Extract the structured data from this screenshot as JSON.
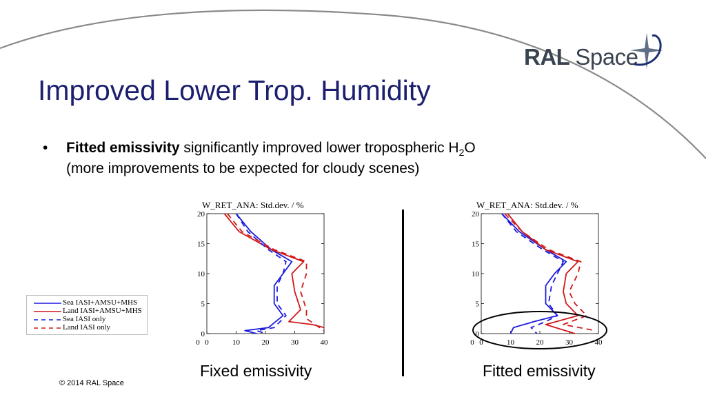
{
  "logo": {
    "word1": "RAL",
    "word2": "Space"
  },
  "slide": {
    "title": "Improved Lower Trop. Humidity",
    "bullet": {
      "marker": "•",
      "bold": "Fitted emissivity",
      "rest": " significantly improved lower tropospheric H",
      "subscript": "2",
      "after_sub": "O",
      "line2": "(more improvements to be expected for cloudy scenes)"
    },
    "footer": "© 2014 RAL Space"
  },
  "legend": {
    "entries": [
      {
        "label": "Sea IASI+AMSU+MHS",
        "color": "#1a1adf",
        "dash": false
      },
      {
        "label": "Land IASI+AMSU+MHS",
        "color": "#d01818",
        "dash": false
      },
      {
        "label": "Sea IASI only",
        "color": "#1a1adf",
        "dash": true
      },
      {
        "label": "Land IASI only",
        "color": "#d01818",
        "dash": true
      }
    ]
  },
  "colors": {
    "sea": "#1a1adf",
    "land": "#d01818",
    "title": "#1b1f6e",
    "swoosh": "#8a8a8a"
  },
  "chart_data": [
    {
      "type": "line",
      "title": "W_RET_ANA: Std.dev. / %",
      "caption": "Fixed emissivity",
      "xlim": [
        0,
        40
      ],
      "ylim": [
        0,
        20
      ],
      "xticks": [
        0,
        10,
        20,
        30,
        40
      ],
      "yticks": [
        0,
        5,
        10,
        15,
        20
      ],
      "left_extra_tick": "0",
      "highlight_ellipse": false,
      "series": [
        {
          "name": "Sea IASI+AMSU+MHS",
          "color": "#1a1adf",
          "dash": false,
          "points": [
            [
              10,
              20
            ],
            [
              15,
              17
            ],
            [
              22,
              14
            ],
            [
              29,
              12
            ],
            [
              26,
              10
            ],
            [
              23,
              8
            ],
            [
              23,
              5
            ],
            [
              26,
              3
            ],
            [
              21,
              1
            ],
            [
              13,
              0.5
            ],
            [
              17,
              0
            ]
          ]
        },
        {
          "name": "Land IASI+AMSU+MHS",
          "color": "#d01818",
          "dash": false,
          "points": [
            [
              6,
              20
            ],
            [
              11,
              17
            ],
            [
              22,
              14
            ],
            [
              33,
              12
            ],
            [
              29,
              10
            ],
            [
              30,
              7
            ],
            [
              32,
              4
            ],
            [
              28,
              2
            ],
            [
              36,
              1.5
            ],
            [
              40,
              1
            ]
          ]
        },
        {
          "name": "Sea IASI only",
          "color": "#1a1adf",
          "dash": true,
          "points": [
            [
              10,
              20
            ],
            [
              14,
              17
            ],
            [
              21,
              14
            ],
            [
              27,
              12
            ],
            [
              26,
              10
            ],
            [
              24,
              8
            ],
            [
              24,
              5
            ],
            [
              27,
              3
            ],
            [
              23,
              1
            ],
            [
              17,
              0.5
            ],
            [
              20,
              0
            ]
          ]
        },
        {
          "name": "Land IASI only",
          "color": "#d01818",
          "dash": true,
          "points": [
            [
              7,
              20
            ],
            [
              12,
              17
            ],
            [
              23,
              14
            ],
            [
              34,
              12
            ],
            [
              34,
              10
            ],
            [
              32,
              7
            ],
            [
              34,
              4
            ],
            [
              34,
              2.5
            ],
            [
              40,
              0.5
            ]
          ]
        }
      ]
    },
    {
      "type": "line",
      "title": "W_RET_ANA: Std.dev. / %",
      "caption": "Fitted emissivity",
      "xlim": [
        0,
        40
      ],
      "ylim": [
        0,
        20
      ],
      "xticks": [
        0,
        10,
        20,
        30,
        40
      ],
      "yticks": [
        0,
        5,
        10,
        15,
        20
      ],
      "left_extra_tick": "0",
      "highlight_ellipse": true,
      "series": [
        {
          "name": "Sea IASI+AMSU+MHS",
          "color": "#1a1adf",
          "dash": false,
          "points": [
            [
              7,
              20
            ],
            [
              13,
              17
            ],
            [
              22,
              14
            ],
            [
              29,
              12
            ],
            [
              25,
              10
            ],
            [
              22,
              8
            ],
            [
              22,
              5
            ],
            [
              26,
              3
            ],
            [
              18,
              2
            ],
            [
              11,
              1
            ],
            [
              10,
              0
            ]
          ]
        },
        {
          "name": "Land IASI+AMSU+MHS",
          "color": "#d01818",
          "dash": false,
          "points": [
            [
              9,
              20
            ],
            [
              14,
              17
            ],
            [
              22,
              14
            ],
            [
              33,
              12
            ],
            [
              29,
              10
            ],
            [
              28,
              7
            ],
            [
              29,
              5
            ],
            [
              33,
              3
            ],
            [
              22,
              1.5
            ],
            [
              32,
              0
            ]
          ]
        },
        {
          "name": "Sea IASI only",
          "color": "#1a1adf",
          "dash": true,
          "points": [
            [
              7,
              20
            ],
            [
              12,
              17
            ],
            [
              21,
              14
            ],
            [
              28,
              12
            ],
            [
              26,
              10
            ],
            [
              24,
              8
            ],
            [
              23,
              5
            ],
            [
              26,
              3
            ],
            [
              22,
              2
            ],
            [
              17,
              1
            ],
            [
              19,
              0
            ]
          ]
        },
        {
          "name": "Land IASI only",
          "color": "#d01818",
          "dash": true,
          "points": [
            [
              8,
              20
            ],
            [
              14,
              17
            ],
            [
              23,
              14
            ],
            [
              34,
              12
            ],
            [
              33,
              10
            ],
            [
              30,
              7
            ],
            [
              32,
              5
            ],
            [
              36,
              3
            ],
            [
              28,
              1.5
            ],
            [
              39,
              0.5
            ]
          ]
        }
      ]
    }
  ]
}
